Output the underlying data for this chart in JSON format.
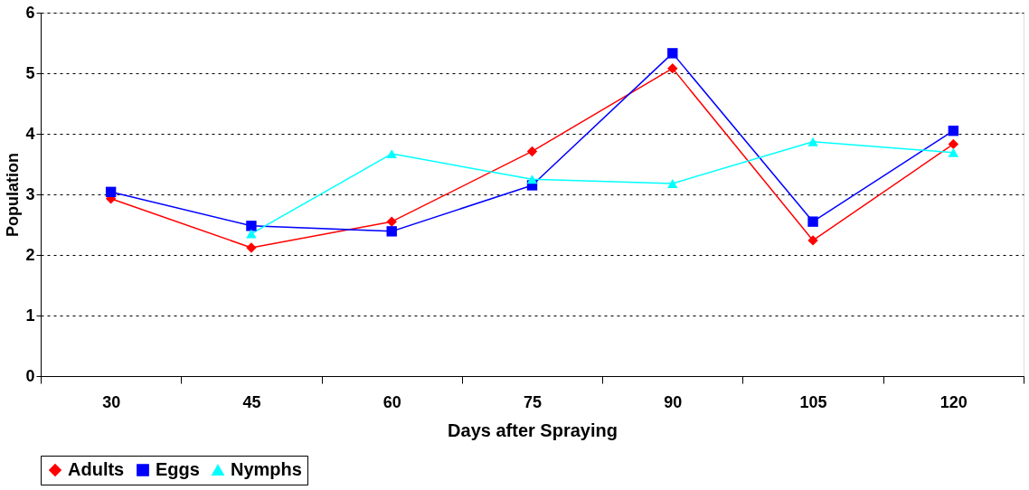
{
  "chart_data": {
    "type": "line",
    "xlabel": "Days after Spraying",
    "ylabel": "Population",
    "categories": [
      "30",
      "45",
      "60",
      "75",
      "90",
      "105",
      "120"
    ],
    "series": [
      {
        "name": "Adults",
        "color": "#ff0000",
        "marker": "diamond",
        "values": [
          2.93,
          2.12,
          2.55,
          3.71,
          5.08,
          2.24,
          3.83
        ]
      },
      {
        "name": "Eggs",
        "color": "#0000ff",
        "marker": "square",
        "values": [
          3.04,
          2.48,
          2.39,
          3.15,
          5.33,
          2.55,
          4.05
        ]
      },
      {
        "name": "Nymphs",
        "color": "#00ffff",
        "marker": "triangle",
        "values": [
          null,
          2.35,
          3.67,
          3.25,
          3.18,
          3.87,
          3.69
        ]
      }
    ],
    "ylim": [
      0,
      6
    ],
    "yticks": [
      0,
      1,
      2,
      3,
      4,
      5,
      6
    ],
    "grid": "y",
    "legend": "bottom"
  }
}
